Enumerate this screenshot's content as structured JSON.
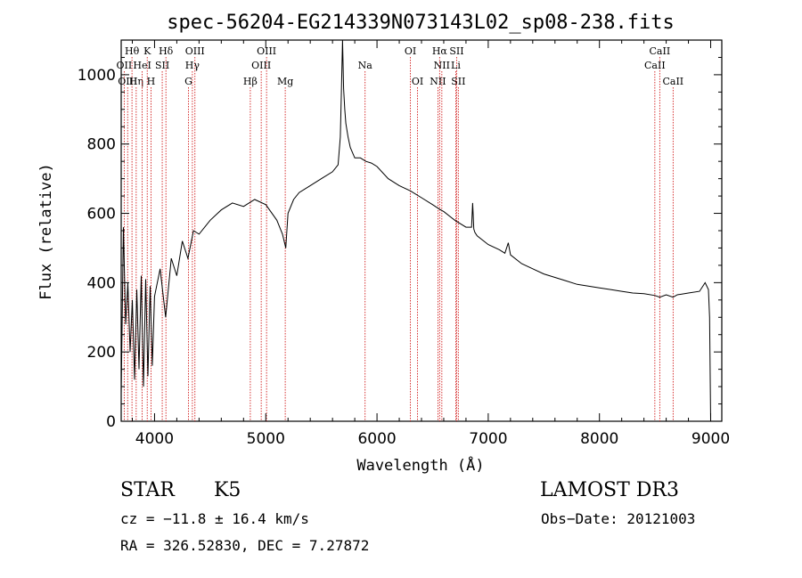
{
  "chart_data": {
    "type": "line",
    "title": "spec-56204-EG214339N073143L02_sp08-238.fits",
    "xlabel": "Wavelength (Å)",
    "ylabel": "Flux (relative)",
    "xlim": [
      3700,
      9100
    ],
    "ylim": [
      0,
      1100
    ],
    "x_ticks": [
      4000,
      5000,
      6000,
      7000,
      8000,
      9000
    ],
    "y_ticks": [
      0,
      200,
      400,
      600,
      800,
      1000
    ],
    "grid": false,
    "series": [
      {
        "name": "spectrum",
        "x": [
          3700,
          3720,
          3740,
          3760,
          3780,
          3800,
          3820,
          3840,
          3860,
          3880,
          3900,
          3920,
          3940,
          3960,
          3980,
          4000,
          4050,
          4100,
          4150,
          4200,
          4250,
          4300,
          4350,
          4400,
          4500,
          4600,
          4700,
          4800,
          4900,
          5000,
          5100,
          5150,
          5180,
          5200,
          5250,
          5300,
          5400,
          5500,
          5600,
          5650,
          5670,
          5680,
          5690,
          5700,
          5710,
          5720,
          5740,
          5760,
          5800,
          5850,
          5900,
          5950,
          6000,
          6100,
          6200,
          6300,
          6400,
          6500,
          6563,
          6600,
          6700,
          6800,
          6850,
          6860,
          6870,
          6880,
          6900,
          7000,
          7100,
          7150,
          7180,
          7200,
          7300,
          7400,
          7500,
          7600,
          7700,
          7800,
          7900,
          8000,
          8100,
          8200,
          8300,
          8400,
          8500,
          8542,
          8600,
          8662,
          8700,
          8800,
          8900,
          8950,
          8980,
          8990,
          9000
        ],
        "y": [
          80,
          560,
          280,
          400,
          200,
          350,
          120,
          380,
          150,
          420,
          100,
          410,
          130,
          390,
          160,
          360,
          440,
          300,
          470,
          420,
          520,
          470,
          550,
          540,
          580,
          610,
          630,
          620,
          640,
          625,
          580,
          540,
          500,
          600,
          640,
          660,
          680,
          700,
          720,
          740,
          820,
          950,
          1100,
          960,
          900,
          860,
          820,
          790,
          760,
          760,
          750,
          745,
          735,
          700,
          680,
          665,
          645,
          625,
          612,
          605,
          580,
          560,
          560,
          630,
          555,
          545,
          535,
          510,
          495,
          485,
          515,
          480,
          455,
          440,
          425,
          415,
          405,
          395,
          390,
          385,
          380,
          375,
          370,
          368,
          363,
          358,
          365,
          358,
          365,
          370,
          375,
          400,
          380,
          300,
          0
        ]
      }
    ],
    "lines": [
      {
        "label": "Hθ",
        "x": 3797,
        "row": 1
      },
      {
        "label": "OII",
        "x": 3727,
        "row": 2
      },
      {
        "label": "OIII",
        "x": 3758,
        "row": 3
      },
      {
        "label": "Hη",
        "x": 3835,
        "row": 3
      },
      {
        "label": "K",
        "x": 3934,
        "row": 1
      },
      {
        "label": "HeI",
        "x": 3889,
        "row": 2
      },
      {
        "label": "SII",
        "x": 4069,
        "row": 2
      },
      {
        "label": "H",
        "x": 3968,
        "row": 3
      },
      {
        "label": "Hδ",
        "x": 4102,
        "row": 1
      },
      {
        "label": "OIII",
        "x": 4363,
        "row": 1
      },
      {
        "label": "Hγ",
        "x": 4340,
        "row": 2
      },
      {
        "label": "G",
        "x": 4305,
        "row": 3
      },
      {
        "label": "Hβ",
        "x": 4861,
        "row": 3
      },
      {
        "label": "OIII",
        "x": 5007,
        "row": 1
      },
      {
        "label": "OIII",
        "x": 4959,
        "row": 2
      },
      {
        "label": "Mg",
        "x": 5175,
        "row": 3
      },
      {
        "label": "Na",
        "x": 5893,
        "row": 2
      },
      {
        "label": "OI",
        "x": 6300,
        "row": 1
      },
      {
        "label": "OI",
        "x": 6364,
        "row": 3
      },
      {
        "label": "Hα",
        "x": 6563,
        "row": 1
      },
      {
        "label": "NII",
        "x": 6583,
        "row": 2
      },
      {
        "label": "NII",
        "x": 6548,
        "row": 3
      },
      {
        "label": "SII",
        "x": 6716,
        "row": 1
      },
      {
        "label": "Li",
        "x": 6708,
        "row": 2
      },
      {
        "label": "SII",
        "x": 6731,
        "row": 3
      },
      {
        "label": "CaII",
        "x": 8542,
        "row": 1
      },
      {
        "label": "CaII",
        "x": 8498,
        "row": 2
      },
      {
        "label": "CaII",
        "x": 8662,
        "row": 3
      }
    ]
  },
  "info": {
    "object_class": "STAR",
    "subclass": "K5",
    "survey": "LAMOST DR3",
    "cz_line": "cz = −11.8 ± 16.4 km/s",
    "obs_date": "Obs−Date: 20121003",
    "coords": "RA = 326.52830, DEC =   7.27872"
  },
  "colors": {
    "line": "#000000",
    "marker_lines": "#cc0000",
    "background": "#ffffff"
  }
}
